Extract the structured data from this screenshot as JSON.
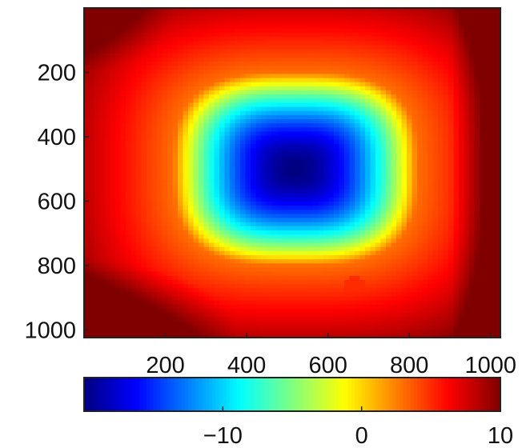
{
  "chart_data": {
    "type": "heatmap",
    "title": "",
    "xlabel": "",
    "ylabel": "",
    "x_range": [
      0,
      1024
    ],
    "y_range": [
      0,
      1024
    ],
    "y_inverted": true,
    "xticks": [
      200,
      400,
      600,
      800,
      1000
    ],
    "yticks": [
      200,
      400,
      600,
      800,
      1000
    ],
    "colormap": "jet",
    "colorbar": {
      "min": -20,
      "max": 10,
      "ticks": [
        -10,
        0,
        10
      ],
      "tick_labels": [
        "−10",
        "0",
        "10"
      ],
      "placement": "bottom"
    },
    "grid": false,
    "field": {
      "description_values": "approximate smooth scalar field, value at (x,y) in data units",
      "bowl_center": [
        520,
        500
      ],
      "min_value": -20,
      "rim_value": 3,
      "max_value": 10
    },
    "features": [
      {
        "type": "spot",
        "x": 75,
        "y": 275,
        "value": 4.5
      },
      {
        "type": "spot",
        "x": 490,
        "y": 880,
        "value": 4.5
      },
      {
        "type": "spot",
        "x": 665,
        "y": 860,
        "value": 5
      }
    ]
  }
}
